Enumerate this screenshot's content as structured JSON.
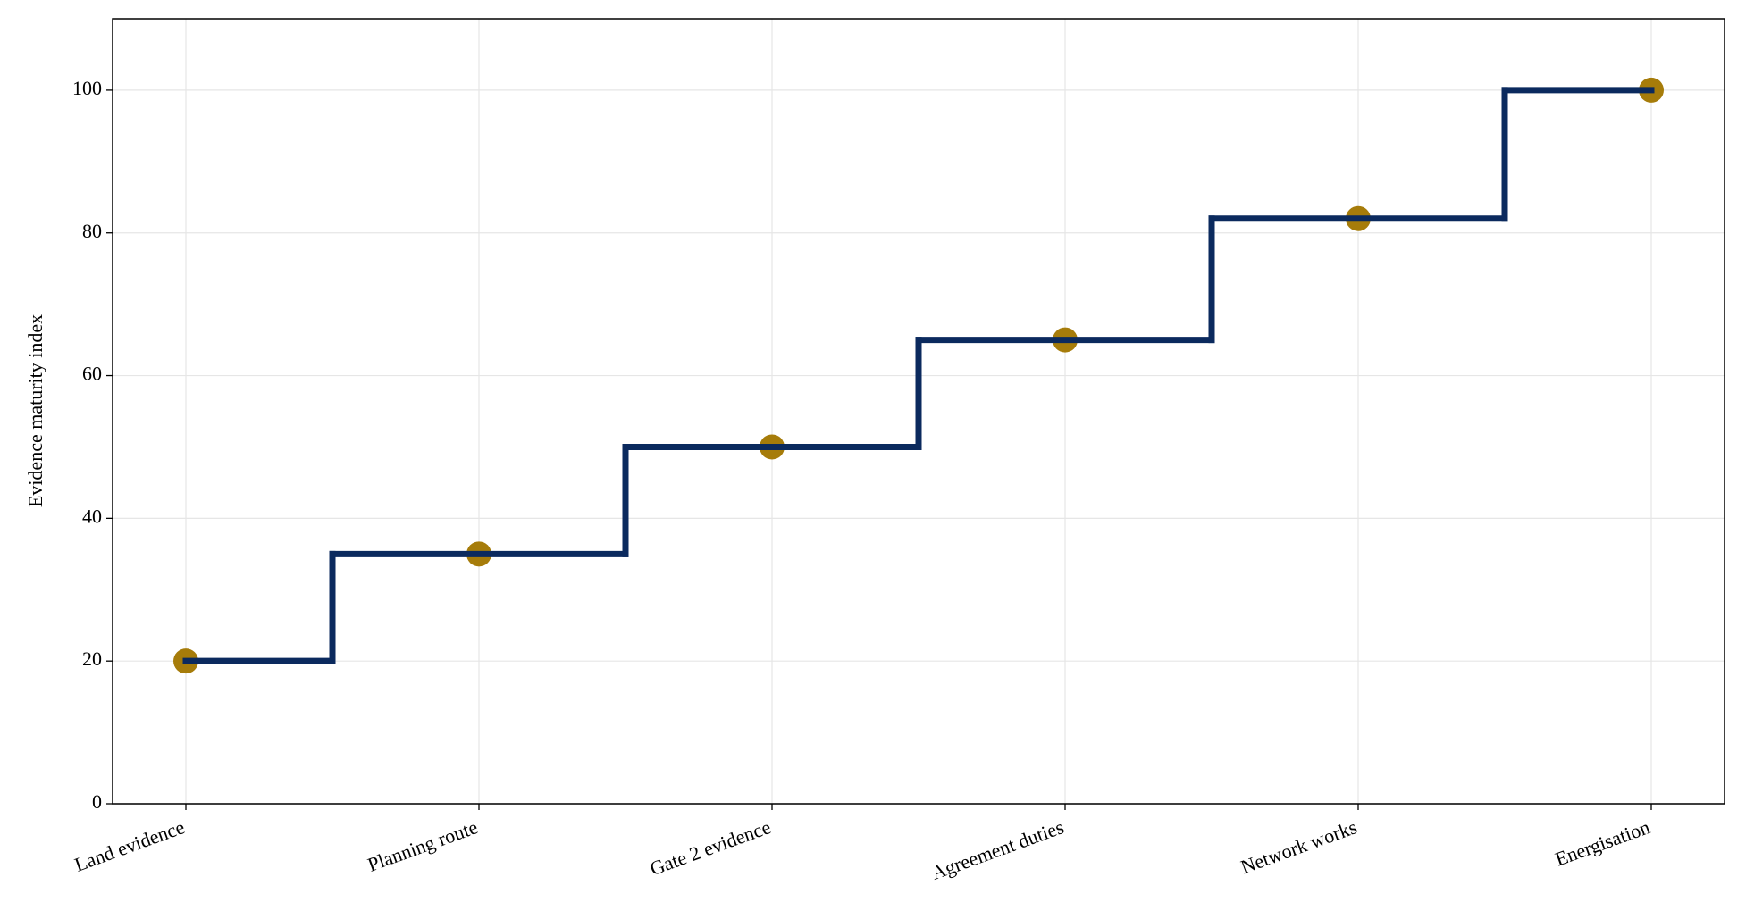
{
  "chart_data": {
    "type": "step",
    "y_label": "Evidence maturity index",
    "categories": [
      "Land evidence",
      "Planning route",
      "Gate 2 evidence",
      "Agreement duties",
      "Network works",
      "Energisation"
    ],
    "values": [
      20,
      35,
      50,
      65,
      82,
      100
    ],
    "color": "#0b2a5e",
    "marker_color": "#a67c0a",
    "ylim": [
      0,
      110
    ],
    "yticks": [
      0,
      20,
      40,
      60,
      80,
      100
    ],
    "grid": true
  }
}
